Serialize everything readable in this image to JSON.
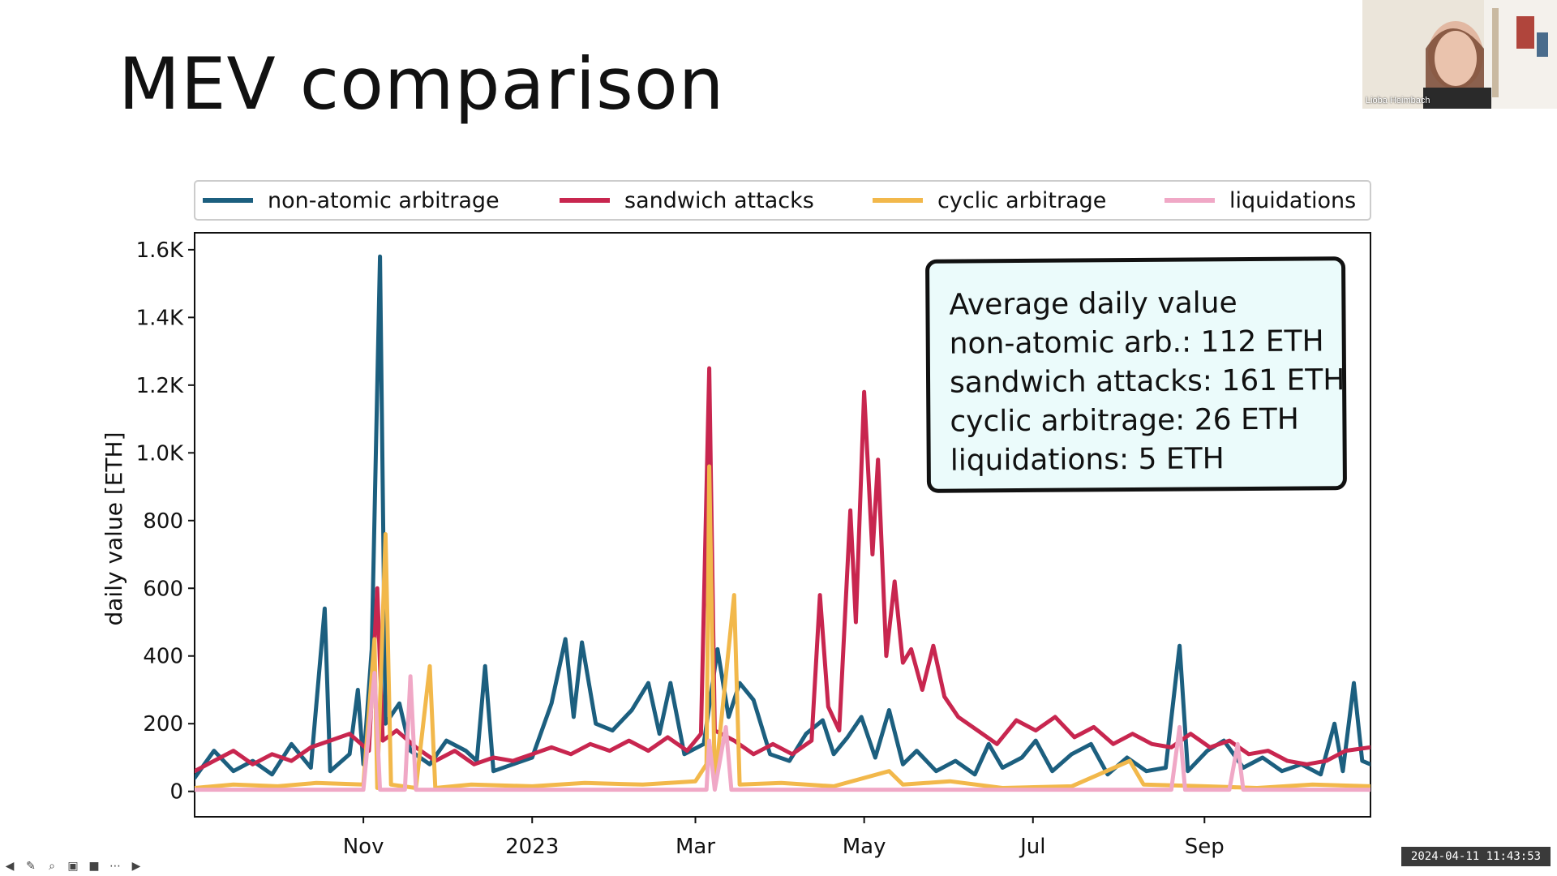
{
  "slide": {
    "title": "MEV comparison"
  },
  "annotation": {
    "heading": "Average daily value",
    "lines": [
      "non-atomic arb.: 112 ETH",
      "sandwich attacks: 161 ETH",
      "cyclic arbitrage: 26 ETH",
      "liquidations:  5 ETH"
    ]
  },
  "webcam": {
    "name": "Lioba Heimbach"
  },
  "timestamp": "2024-04-11 11:43:53",
  "toolbar": {
    "icons": [
      "back-arrow-icon",
      "pen-icon",
      "zoom-icon",
      "captions-icon",
      "camera-icon",
      "more-icon",
      "forward-arrow-icon"
    ]
  },
  "colors": {
    "non_atomic": "#1c5f7f",
    "sandwich": "#c8264f",
    "cyclic": "#f2b84b",
    "liquidations": "#f0a8c6"
  },
  "chart_data": {
    "type": "line",
    "title": "",
    "xlabel": "",
    "ylabel": "daily value [ETH]",
    "ylim": [
      -75,
      1650
    ],
    "yticks": [
      0,
      200,
      400,
      600,
      800,
      1000,
      1200,
      1400,
      1600
    ],
    "ytick_labels": [
      "0",
      "200",
      "400",
      "600",
      "800",
      "1.0K",
      "1.2K",
      "1.4K",
      "1.6K"
    ],
    "x_range": [
      "2022-09-01",
      "2023-10-31"
    ],
    "xticks": [
      "2022-11-01",
      "2023-01-01",
      "2023-03-01",
      "2023-05-01",
      "2023-07-01",
      "2023-09-01"
    ],
    "xtick_labels": [
      "Nov",
      "2023",
      "Mar",
      "May",
      "Jul",
      "Sep"
    ],
    "grid": false,
    "legend_position": "top (above plot)",
    "series": [
      {
        "name": "non-atomic arbitrage",
        "color": "#1c5f7f",
        "points": [
          [
            "2022-09-01",
            40
          ],
          [
            "2022-09-08",
            120
          ],
          [
            "2022-09-15",
            60
          ],
          [
            "2022-09-22",
            90
          ],
          [
            "2022-09-29",
            50
          ],
          [
            "2022-10-06",
            140
          ],
          [
            "2022-10-13",
            70
          ],
          [
            "2022-10-18",
            540
          ],
          [
            "2022-10-20",
            60
          ],
          [
            "2022-10-27",
            110
          ],
          [
            "2022-10-30",
            300
          ],
          [
            "2022-11-01",
            80
          ],
          [
            "2022-11-04",
            420
          ],
          [
            "2022-11-07",
            1580
          ],
          [
            "2022-11-09",
            200
          ],
          [
            "2022-11-14",
            260
          ],
          [
            "2022-11-18",
            120
          ],
          [
            "2022-11-25",
            80
          ],
          [
            "2022-12-01",
            150
          ],
          [
            "2022-12-08",
            120
          ],
          [
            "2022-12-12",
            90
          ],
          [
            "2022-12-15",
            370
          ],
          [
            "2022-12-18",
            60
          ],
          [
            "2022-12-25",
            80
          ],
          [
            "2023-01-01",
            100
          ],
          [
            "2023-01-08",
            260
          ],
          [
            "2023-01-13",
            450
          ],
          [
            "2023-01-16",
            220
          ],
          [
            "2023-01-19",
            440
          ],
          [
            "2023-01-24",
            200
          ],
          [
            "2023-01-30",
            180
          ],
          [
            "2023-02-06",
            240
          ],
          [
            "2023-02-12",
            320
          ],
          [
            "2023-02-16",
            170
          ],
          [
            "2023-02-20",
            320
          ],
          [
            "2023-02-25",
            110
          ],
          [
            "2023-03-04",
            140
          ],
          [
            "2023-03-09",
            420
          ],
          [
            "2023-03-13",
            220
          ],
          [
            "2023-03-17",
            320
          ],
          [
            "2023-03-22",
            270
          ],
          [
            "2023-03-28",
            110
          ],
          [
            "2023-04-04",
            90
          ],
          [
            "2023-04-10",
            170
          ],
          [
            "2023-04-16",
            210
          ],
          [
            "2023-04-20",
            110
          ],
          [
            "2023-04-25",
            160
          ],
          [
            "2023-04-30",
            220
          ],
          [
            "2023-05-05",
            100
          ],
          [
            "2023-05-10",
            240
          ],
          [
            "2023-05-15",
            80
          ],
          [
            "2023-05-20",
            120
          ],
          [
            "2023-05-27",
            60
          ],
          [
            "2023-06-03",
            90
          ],
          [
            "2023-06-10",
            50
          ],
          [
            "2023-06-15",
            140
          ],
          [
            "2023-06-20",
            70
          ],
          [
            "2023-06-27",
            100
          ],
          [
            "2023-07-02",
            150
          ],
          [
            "2023-07-08",
            60
          ],
          [
            "2023-07-15",
            110
          ],
          [
            "2023-07-22",
            140
          ],
          [
            "2023-07-28",
            50
          ],
          [
            "2023-08-04",
            100
          ],
          [
            "2023-08-11",
            60
          ],
          [
            "2023-08-18",
            70
          ],
          [
            "2023-08-23",
            430
          ],
          [
            "2023-08-26",
            60
          ],
          [
            "2023-09-02",
            120
          ],
          [
            "2023-09-08",
            150
          ],
          [
            "2023-09-15",
            70
          ],
          [
            "2023-09-22",
            100
          ],
          [
            "2023-09-29",
            60
          ],
          [
            "2023-10-06",
            80
          ],
          [
            "2023-10-13",
            50
          ],
          [
            "2023-10-18",
            200
          ],
          [
            "2023-10-21",
            60
          ],
          [
            "2023-10-25",
            320
          ],
          [
            "2023-10-28",
            90
          ],
          [
            "2023-10-31",
            80
          ]
        ]
      },
      {
        "name": "sandwich attacks",
        "color": "#c8264f",
        "points": [
          [
            "2022-09-01",
            60
          ],
          [
            "2022-09-08",
            90
          ],
          [
            "2022-09-15",
            120
          ],
          [
            "2022-09-22",
            80
          ],
          [
            "2022-09-29",
            110
          ],
          [
            "2022-10-06",
            90
          ],
          [
            "2022-10-13",
            130
          ],
          [
            "2022-10-20",
            150
          ],
          [
            "2022-10-27",
            170
          ],
          [
            "2022-11-03",
            120
          ],
          [
            "2022-11-06",
            600
          ],
          [
            "2022-11-08",
            150
          ],
          [
            "2022-11-13",
            180
          ],
          [
            "2022-11-20",
            130
          ],
          [
            "2022-11-27",
            90
          ],
          [
            "2022-12-04",
            120
          ],
          [
            "2022-12-11",
            80
          ],
          [
            "2022-12-18",
            100
          ],
          [
            "2022-12-25",
            90
          ],
          [
            "2023-01-01",
            110
          ],
          [
            "2023-01-08",
            130
          ],
          [
            "2023-01-15",
            110
          ],
          [
            "2023-01-22",
            140
          ],
          [
            "2023-01-29",
            120
          ],
          [
            "2023-02-05",
            150
          ],
          [
            "2023-02-12",
            120
          ],
          [
            "2023-02-19",
            160
          ],
          [
            "2023-02-26",
            120
          ],
          [
            "2023-03-03",
            170
          ],
          [
            "2023-03-06",
            1250
          ],
          [
            "2023-03-08",
            180
          ],
          [
            "2023-03-15",
            150
          ],
          [
            "2023-03-22",
            110
          ],
          [
            "2023-03-29",
            140
          ],
          [
            "2023-04-05",
            110
          ],
          [
            "2023-04-12",
            150
          ],
          [
            "2023-04-15",
            580
          ],
          [
            "2023-04-18",
            250
          ],
          [
            "2023-04-22",
            180
          ],
          [
            "2023-04-26",
            830
          ],
          [
            "2023-04-28",
            500
          ],
          [
            "2023-05-01",
            1180
          ],
          [
            "2023-05-04",
            700
          ],
          [
            "2023-05-06",
            980
          ],
          [
            "2023-05-09",
            400
          ],
          [
            "2023-05-12",
            620
          ],
          [
            "2023-05-15",
            380
          ],
          [
            "2023-05-18",
            420
          ],
          [
            "2023-05-22",
            300
          ],
          [
            "2023-05-26",
            430
          ],
          [
            "2023-05-30",
            280
          ],
          [
            "2023-06-04",
            220
          ],
          [
            "2023-06-11",
            180
          ],
          [
            "2023-06-18",
            140
          ],
          [
            "2023-06-25",
            210
          ],
          [
            "2023-07-02",
            180
          ],
          [
            "2023-07-09",
            220
          ],
          [
            "2023-07-16",
            160
          ],
          [
            "2023-07-23",
            190
          ],
          [
            "2023-07-30",
            140
          ],
          [
            "2023-08-06",
            170
          ],
          [
            "2023-08-13",
            140
          ],
          [
            "2023-08-20",
            130
          ],
          [
            "2023-08-27",
            170
          ],
          [
            "2023-09-03",
            130
          ],
          [
            "2023-09-10",
            150
          ],
          [
            "2023-09-17",
            110
          ],
          [
            "2023-09-24",
            120
          ],
          [
            "2023-10-01",
            90
          ],
          [
            "2023-10-08",
            80
          ],
          [
            "2023-10-15",
            90
          ],
          [
            "2023-10-22",
            120
          ],
          [
            "2023-10-31",
            130
          ]
        ]
      },
      {
        "name": "cyclic arbitrage",
        "color": "#f2b84b",
        "points": [
          [
            "2022-09-01",
            10
          ],
          [
            "2022-09-15",
            20
          ],
          [
            "2022-10-01",
            15
          ],
          [
            "2022-10-15",
            25
          ],
          [
            "2022-11-01",
            20
          ],
          [
            "2022-11-05",
            450
          ],
          [
            "2022-11-06",
            10
          ],
          [
            "2022-11-09",
            760
          ],
          [
            "2022-11-11",
            20
          ],
          [
            "2022-11-20",
            10
          ],
          [
            "2022-11-25",
            370
          ],
          [
            "2022-11-27",
            10
          ],
          [
            "2022-12-10",
            20
          ],
          [
            "2023-01-01",
            15
          ],
          [
            "2023-01-20",
            25
          ],
          [
            "2023-02-10",
            20
          ],
          [
            "2023-03-01",
            30
          ],
          [
            "2023-03-05",
            80
          ],
          [
            "2023-03-06",
            960
          ],
          [
            "2023-03-08",
            20
          ],
          [
            "2023-03-15",
            580
          ],
          [
            "2023-03-17",
            20
          ],
          [
            "2023-04-01",
            25
          ],
          [
            "2023-04-20",
            15
          ],
          [
            "2023-05-10",
            60
          ],
          [
            "2023-05-15",
            20
          ],
          [
            "2023-06-01",
            30
          ],
          [
            "2023-06-20",
            10
          ],
          [
            "2023-07-15",
            15
          ],
          [
            "2023-08-05",
            90
          ],
          [
            "2023-08-10",
            20
          ],
          [
            "2023-09-01",
            15
          ],
          [
            "2023-09-20",
            10
          ],
          [
            "2023-10-10",
            20
          ],
          [
            "2023-10-31",
            15
          ]
        ]
      },
      {
        "name": "liquidations",
        "color": "#f0a8c6",
        "points": [
          [
            "2022-09-01",
            5
          ],
          [
            "2022-10-01",
            5
          ],
          [
            "2022-11-01",
            5
          ],
          [
            "2022-11-05",
            350
          ],
          [
            "2022-11-07",
            5
          ],
          [
            "2022-11-16",
            5
          ],
          [
            "2022-11-18",
            340
          ],
          [
            "2022-11-20",
            5
          ],
          [
            "2022-12-20",
            5
          ],
          [
            "2023-01-20",
            5
          ],
          [
            "2023-02-20",
            5
          ],
          [
            "2023-03-05",
            5
          ],
          [
            "2023-03-06",
            150
          ],
          [
            "2023-03-08",
            5
          ],
          [
            "2023-03-12",
            190
          ],
          [
            "2023-03-14",
            5
          ],
          [
            "2023-04-20",
            5
          ],
          [
            "2023-05-20",
            5
          ],
          [
            "2023-06-15",
            5
          ],
          [
            "2023-07-20",
            5
          ],
          [
            "2023-08-20",
            5
          ],
          [
            "2023-08-23",
            190
          ],
          [
            "2023-08-25",
            5
          ],
          [
            "2023-09-10",
            5
          ],
          [
            "2023-09-13",
            140
          ],
          [
            "2023-09-15",
            5
          ],
          [
            "2023-10-31",
            5
          ]
        ]
      }
    ]
  }
}
